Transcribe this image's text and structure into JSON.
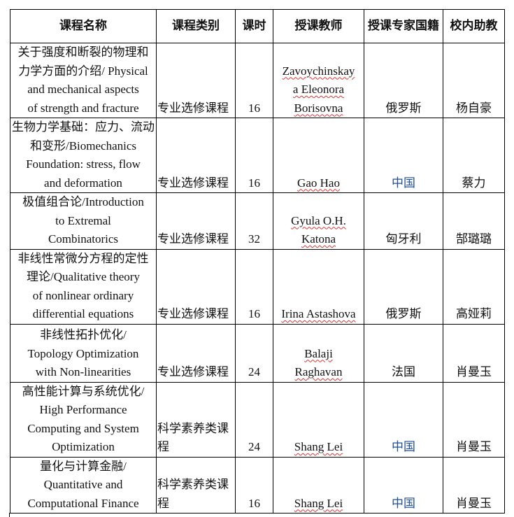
{
  "headers": [
    "课程名称",
    "课程类别",
    "课时",
    "授课教师",
    "授课专家国籍",
    "校内助教"
  ],
  "colors": {
    "highlight_text": "#1f4e9a",
    "spellcheck_underline": "#d33333"
  },
  "rows": [
    {
      "name": "关于强度和断裂的物理和\n力学方面的介绍/ Physical\nand mechanical aspects\nof strength and fracture",
      "category": "专业选修课程",
      "hours": "16",
      "teacher": "Zavoychinskay\na Eleonora\nBorisovna",
      "nationality": "俄罗斯",
      "nationality_blue": false,
      "assistant": "杨自豪"
    },
    {
      "name": "生物力学基础：应力、流动\n和变形/Biomechanics\nFoundation: stress, flow\nand deformation",
      "category": "专业选修课程",
      "hours": "16",
      "teacher": "Gao Hao",
      "nationality": "中国",
      "nationality_blue": true,
      "assistant": "蔡力"
    },
    {
      "name": "极值组合论/Introduction\nto Extremal\nCombinatorics",
      "category": "专业选修课程",
      "hours": "32",
      "teacher": "Gyula O.H.\nKatona",
      "nationality": "匈牙利",
      "nationality_blue": false,
      "assistant": "郜璐璐"
    },
    {
      "name": "非线性常微分方程的定性\n理论/Qualitative theory\nof nonlinear ordinary\ndifferential equations",
      "category": "专业选修课程",
      "hours": "16",
      "teacher": "Irina Astashova",
      "nationality": "俄罗斯",
      "nationality_blue": false,
      "assistant": "高娅莉"
    },
    {
      "name": "非线性拓扑优化/\nTopology Optimization\nwith Non-linearities",
      "category": "专业选修课程",
      "hours": "24",
      "teacher": "Balaji\nRaghavan",
      "nationality": "法国",
      "nationality_blue": false,
      "assistant": "肖曼玉"
    },
    {
      "name": "高性能计算与系统优化/\nHigh Performance\nComputing and System\nOptimization",
      "category": "科学素养类课\n程",
      "hours": "24",
      "teacher": "Shang Lei",
      "nationality": "中国",
      "nationality_blue": true,
      "assistant": "肖曼玉"
    },
    {
      "name": "量化与计算金融/\nQuantitative and\nComputational Finance",
      "category": "科学素养类课\n程",
      "hours": "16",
      "teacher": "Shang Lei",
      "nationality": "中国",
      "nationality_blue": true,
      "assistant": "肖曼玉"
    }
  ]
}
